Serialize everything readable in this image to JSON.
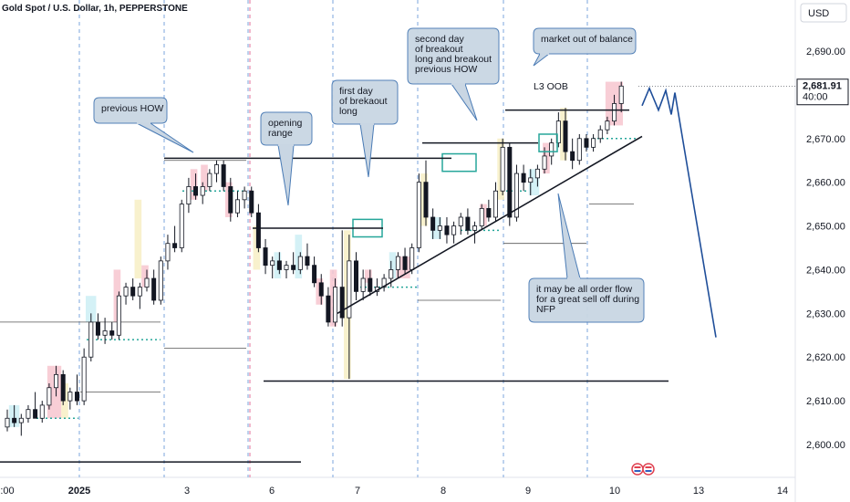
{
  "header": {
    "title": "Gold Spot / U.S. Dollar, 1h, PEPPERSTONE",
    "currency": "USD"
  },
  "chart_data": {
    "type": "candlestick",
    "y_axis": {
      "ticks": [
        2600,
        2610,
        2620,
        2630,
        2640,
        2650,
        2660,
        2670,
        2680,
        2690
      ],
      "tick_labels": [
        "2,600.00",
        "2,610.00",
        "2,620.00",
        "2,630.00",
        "2,640.00",
        "2,650.00",
        "2,660.00",
        "2,670.00",
        "2,680.00",
        "2,690.00"
      ],
      "ylim": [
        2593,
        2699
      ]
    },
    "x_axis": {
      "labels": [
        ":00",
        "2025",
        "3",
        "6",
        "7",
        "8",
        "9",
        "10",
        "13",
        "14"
      ]
    },
    "price_label": {
      "value": "2,681.91",
      "countdown": "40:00"
    },
    "candles": [
      {
        "t": 0,
        "o": 2604,
        "h": 2608,
        "l": 2603,
        "c": 2606
      },
      {
        "t": 1,
        "o": 2606,
        "h": 2609,
        "l": 2604,
        "c": 2605
      },
      {
        "t": 2,
        "o": 2605,
        "h": 2607,
        "l": 2602,
        "c": 2606
      },
      {
        "t": 3,
        "o": 2606,
        "h": 2609,
        "l": 2605,
        "c": 2608
      },
      {
        "t": 4,
        "o": 2608,
        "h": 2612,
        "l": 2606,
        "c": 2606
      },
      {
        "t": 5,
        "o": 2606,
        "h": 2610,
        "l": 2605,
        "c": 2609
      },
      {
        "t": 6,
        "o": 2609,
        "h": 2614,
        "l": 2608,
        "c": 2613
      },
      {
        "t": 7,
        "o": 2613,
        "h": 2618,
        "l": 2611,
        "c": 2616
      },
      {
        "t": 8,
        "o": 2616,
        "h": 2617,
        "l": 2609,
        "c": 2610
      },
      {
        "t": 9,
        "o": 2610,
        "h": 2613,
        "l": 2608,
        "c": 2612
      },
      {
        "t": 10,
        "o": 2612,
        "h": 2616,
        "l": 2609,
        "c": 2610
      },
      {
        "t": 11,
        "o": 2610,
        "h": 2622,
        "l": 2609,
        "c": 2620
      },
      {
        "t": 12,
        "o": 2620,
        "h": 2630,
        "l": 2619,
        "c": 2628
      },
      {
        "t": 13,
        "o": 2628,
        "h": 2630,
        "l": 2624,
        "c": 2625
      },
      {
        "t": 14,
        "o": 2625,
        "h": 2629,
        "l": 2623,
        "c": 2626
      },
      {
        "t": 15,
        "o": 2626,
        "h": 2628,
        "l": 2624,
        "c": 2625
      },
      {
        "t": 16,
        "o": 2625,
        "h": 2635,
        "l": 2624,
        "c": 2634
      },
      {
        "t": 17,
        "o": 2634,
        "h": 2637,
        "l": 2632,
        "c": 2636
      },
      {
        "t": 18,
        "o": 2636,
        "h": 2638,
        "l": 2633,
        "c": 2634
      },
      {
        "t": 19,
        "o": 2634,
        "h": 2637,
        "l": 2631,
        "c": 2636
      },
      {
        "t": 20,
        "o": 2636,
        "h": 2640,
        "l": 2635,
        "c": 2638
      },
      {
        "t": 21,
        "o": 2638,
        "h": 2640,
        "l": 2632,
        "c": 2633
      },
      {
        "t": 22,
        "o": 2633,
        "h": 2643,
        "l": 2632,
        "c": 2642
      },
      {
        "t": 23,
        "o": 2642,
        "h": 2648,
        "l": 2640,
        "c": 2646
      },
      {
        "t": 24,
        "o": 2646,
        "h": 2650,
        "l": 2644,
        "c": 2645
      },
      {
        "t": 25,
        "o": 2645,
        "h": 2656,
        "l": 2644,
        "c": 2655
      },
      {
        "t": 26,
        "o": 2655,
        "h": 2661,
        "l": 2653,
        "c": 2659
      },
      {
        "t": 27,
        "o": 2659,
        "h": 2662,
        "l": 2656,
        "c": 2657
      },
      {
        "t": 28,
        "o": 2657,
        "h": 2660,
        "l": 2655,
        "c": 2659
      },
      {
        "t": 29,
        "o": 2659,
        "h": 2663,
        "l": 2658,
        "c": 2662
      },
      {
        "t": 30,
        "o": 2662,
        "h": 2665,
        "l": 2660,
        "c": 2664
      },
      {
        "t": 31,
        "o": 2664,
        "h": 2665,
        "l": 2658,
        "c": 2659
      },
      {
        "t": 32,
        "o": 2659,
        "h": 2661,
        "l": 2651,
        "c": 2653
      },
      {
        "t": 33,
        "o": 2653,
        "h": 2658,
        "l": 2652,
        "c": 2656
      },
      {
        "t": 34,
        "o": 2656,
        "h": 2659,
        "l": 2654,
        "c": 2658
      },
      {
        "t": 35,
        "o": 2658,
        "h": 2659,
        "l": 2652,
        "c": 2653
      },
      {
        "t": 36,
        "o": 2653,
        "h": 2655,
        "l": 2644,
        "c": 2645
      },
      {
        "t": 37,
        "o": 2645,
        "h": 2647,
        "l": 2639,
        "c": 2641
      },
      {
        "t": 38,
        "o": 2641,
        "h": 2643,
        "l": 2638,
        "c": 2642
      },
      {
        "t": 39,
        "o": 2642,
        "h": 2644,
        "l": 2639,
        "c": 2640
      },
      {
        "t": 40,
        "o": 2640,
        "h": 2642,
        "l": 2638,
        "c": 2641
      },
      {
        "t": 41,
        "o": 2641,
        "h": 2644,
        "l": 2639,
        "c": 2640
      },
      {
        "t": 42,
        "o": 2640,
        "h": 2644,
        "l": 2639,
        "c": 2643
      },
      {
        "t": 43,
        "o": 2643,
        "h": 2646,
        "l": 2640,
        "c": 2641
      },
      {
        "t": 44,
        "o": 2641,
        "h": 2643,
        "l": 2636,
        "c": 2637
      },
      {
        "t": 45,
        "o": 2637,
        "h": 2639,
        "l": 2632,
        "c": 2634
      },
      {
        "t": 46,
        "o": 2634,
        "h": 2636,
        "l": 2627,
        "c": 2628
      },
      {
        "t": 47,
        "o": 2628,
        "h": 2638,
        "l": 2627,
        "c": 2636
      },
      {
        "t": 48,
        "o": 2636,
        "h": 2649,
        "l": 2627,
        "c": 2629
      },
      {
        "t": 49,
        "o": 2629,
        "h": 2648,
        "l": 2615,
        "c": 2642
      },
      {
        "t": 50,
        "o": 2642,
        "h": 2644,
        "l": 2633,
        "c": 2635
      },
      {
        "t": 51,
        "o": 2635,
        "h": 2640,
        "l": 2633,
        "c": 2638
      },
      {
        "t": 52,
        "o": 2638,
        "h": 2640,
        "l": 2634,
        "c": 2635
      },
      {
        "t": 53,
        "o": 2635,
        "h": 2638,
        "l": 2634,
        "c": 2636
      },
      {
        "t": 54,
        "o": 2636,
        "h": 2639,
        "l": 2635,
        "c": 2638
      },
      {
        "t": 55,
        "o": 2638,
        "h": 2642,
        "l": 2636,
        "c": 2640
      },
      {
        "t": 56,
        "o": 2640,
        "h": 2644,
        "l": 2638,
        "c": 2643
      },
      {
        "t": 57,
        "o": 2643,
        "h": 2645,
        "l": 2639,
        "c": 2640
      },
      {
        "t": 58,
        "o": 2640,
        "h": 2646,
        "l": 2639,
        "c": 2645
      },
      {
        "t": 59,
        "o": 2645,
        "h": 2662,
        "l": 2644,
        "c": 2660
      },
      {
        "t": 60,
        "o": 2660,
        "h": 2665,
        "l": 2650,
        "c": 2652
      },
      {
        "t": 61,
        "o": 2652,
        "h": 2654,
        "l": 2647,
        "c": 2649
      },
      {
        "t": 62,
        "o": 2649,
        "h": 2652,
        "l": 2647,
        "c": 2650
      },
      {
        "t": 63,
        "o": 2650,
        "h": 2652,
        "l": 2646,
        "c": 2648
      },
      {
        "t": 64,
        "o": 2648,
        "h": 2651,
        "l": 2646,
        "c": 2650
      },
      {
        "t": 65,
        "o": 2650,
        "h": 2653,
        "l": 2648,
        "c": 2652
      },
      {
        "t": 66,
        "o": 2652,
        "h": 2654,
        "l": 2648,
        "c": 2649
      },
      {
        "t": 67,
        "o": 2649,
        "h": 2651,
        "l": 2646,
        "c": 2650
      },
      {
        "t": 68,
        "o": 2650,
        "h": 2655,
        "l": 2649,
        "c": 2654
      },
      {
        "t": 69,
        "o": 2654,
        "h": 2656,
        "l": 2651,
        "c": 2652
      },
      {
        "t": 70,
        "o": 2652,
        "h": 2660,
        "l": 2651,
        "c": 2658
      },
      {
        "t": 71,
        "o": 2658,
        "h": 2670,
        "l": 2657,
        "c": 2668
      },
      {
        "t": 72,
        "o": 2668,
        "h": 2669,
        "l": 2650,
        "c": 2652
      },
      {
        "t": 73,
        "o": 2652,
        "h": 2664,
        "l": 2651,
        "c": 2662
      },
      {
        "t": 74,
        "o": 2662,
        "h": 2664,
        "l": 2658,
        "c": 2660
      },
      {
        "t": 75,
        "o": 2660,
        "h": 2663,
        "l": 2657,
        "c": 2661
      },
      {
        "t": 76,
        "o": 2661,
        "h": 2664,
        "l": 2659,
        "c": 2663
      },
      {
        "t": 77,
        "o": 2663,
        "h": 2668,
        "l": 2662,
        "c": 2666
      },
      {
        "t": 78,
        "o": 2666,
        "h": 2670,
        "l": 2664,
        "c": 2669
      },
      {
        "t": 79,
        "o": 2669,
        "h": 2676,
        "l": 2668,
        "c": 2674
      },
      {
        "t": 80,
        "o": 2674,
        "h": 2677,
        "l": 2665,
        "c": 2667
      },
      {
        "t": 81,
        "o": 2667,
        "h": 2670,
        "l": 2663,
        "c": 2665
      },
      {
        "t": 82,
        "o": 2665,
        "h": 2671,
        "l": 2664,
        "c": 2670
      },
      {
        "t": 83,
        "o": 2670,
        "h": 2671,
        "l": 2667,
        "c": 2668
      },
      {
        "t": 84,
        "o": 2668,
        "h": 2671,
        "l": 2667,
        "c": 2670
      },
      {
        "t": 85,
        "o": 2670,
        "h": 2673,
        "l": 2669,
        "c": 2672
      },
      {
        "t": 86,
        "o": 2672,
        "h": 2675,
        "l": 2671,
        "c": 2674
      },
      {
        "t": 87,
        "o": 2674,
        "h": 2680,
        "l": 2673,
        "c": 2678
      },
      {
        "t": 88,
        "o": 2678,
        "h": 2683,
        "l": 2676,
        "c": 2682
      }
    ],
    "annotations": [
      {
        "id": "previous-how",
        "text": [
          "previous HOW"
        ]
      },
      {
        "id": "opening-range",
        "text": [
          "opening",
          "range"
        ]
      },
      {
        "id": "first-day",
        "text": [
          "first day",
          "of brekaout",
          "long"
        ]
      },
      {
        "id": "second-day",
        "text": [
          "second day",
          "of breakout",
          "long and breakout",
          "previous HOW"
        ]
      },
      {
        "id": "market-out",
        "text": [
          "market out of balance"
        ]
      },
      {
        "id": "l3-oob",
        "text": [
          "L3 OOB"
        ]
      },
      {
        "id": "order-flow",
        "text": [
          "it may be all order flow",
          "for a great sell off during",
          "NFP"
        ]
      }
    ],
    "colors": {
      "up": "#131722",
      "down": "#131722",
      "callout_fill": "#c9d6e3",
      "callout_stroke": "#4a7bb5",
      "dashed": "#5b8fd6",
      "projection": "#1f4e99",
      "accent_teal": "#26a69a"
    }
  }
}
